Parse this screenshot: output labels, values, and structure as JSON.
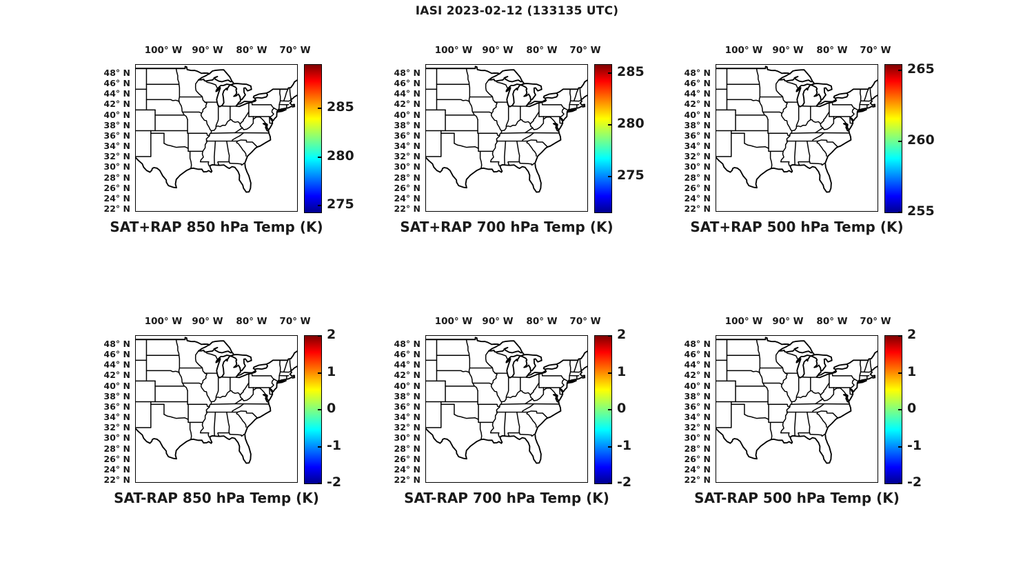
{
  "figure": {
    "title": "IASI 2023-02-12 (133135 UTC)",
    "background_color": "#ffffff",
    "text_color": "#1a1a1a"
  },
  "axes": {
    "lon_tick_labels": [
      "100° W",
      "90° W",
      "80° W",
      "70° W"
    ],
    "lon_tick_values": [
      -100,
      -90,
      -80,
      -70
    ],
    "lat_tick_labels": [
      "48° N",
      "46° N",
      "44° N",
      "42° N",
      "40° N",
      "38° N",
      "36° N",
      "34° N",
      "32° N",
      "30° N",
      "28° N",
      "26° N",
      "24° N",
      "22° N"
    ],
    "lat_tick_values": [
      48,
      46,
      44,
      42,
      40,
      38,
      36,
      34,
      32,
      30,
      28,
      26,
      24,
      22
    ],
    "lon_range_deg_east": [
      -106.5,
      -69.4
    ],
    "lat_range_deg_north": [
      21.5,
      49.7
    ]
  },
  "colormap": {
    "name": "jet",
    "low_color": "#000090",
    "high_color": "#7f0000"
  },
  "panels": [
    {
      "id": "sat-plus-rap-850",
      "row": 0,
      "col": 0,
      "caption": "SAT+RAP 850 hPa Temp (K)",
      "colorbar": {
        "min": 274.3,
        "max": 289.5,
        "tick_values": [
          285,
          280,
          275
        ],
        "tick_labels": [
          "285",
          "280",
          "275"
        ]
      }
    },
    {
      "id": "sat-plus-rap-700",
      "row": 0,
      "col": 1,
      "caption": "SAT+RAP 700 hPa Temp (K)",
      "colorbar": {
        "min": 271.5,
        "max": 285.8,
        "tick_values": [
          285,
          280,
          275
        ],
        "tick_labels": [
          "285",
          "280",
          "275"
        ]
      }
    },
    {
      "id": "sat-plus-rap-500",
      "row": 0,
      "col": 2,
      "caption": "SAT+RAP 500 hPa Temp (K)",
      "colorbar": {
        "min": 255.0,
        "max": 265.4,
        "tick_values": [
          265,
          260,
          255
        ],
        "tick_labels": [
          "265",
          "260",
          "255"
        ]
      }
    },
    {
      "id": "sat-minus-rap-850",
      "row": 1,
      "col": 0,
      "caption": "SAT-RAP 850 hPa Temp (K)",
      "colorbar": {
        "min": -2,
        "max": 2,
        "tick_values": [
          2,
          1,
          0,
          -1,
          -2
        ],
        "tick_labels": [
          "2",
          "1",
          "0",
          "-1",
          "-2"
        ]
      }
    },
    {
      "id": "sat-minus-rap-700",
      "row": 1,
      "col": 1,
      "caption": "SAT-RAP 700 hPa Temp (K)",
      "colorbar": {
        "min": -2,
        "max": 2,
        "tick_values": [
          2,
          1,
          0,
          -1,
          -2
        ],
        "tick_labels": [
          "2",
          "1",
          "0",
          "-1",
          "-2"
        ]
      }
    },
    {
      "id": "sat-minus-rap-500",
      "row": 1,
      "col": 2,
      "caption": "SAT-RAP 500 hPa Temp (K)",
      "colorbar": {
        "min": -2,
        "max": 2,
        "tick_values": [
          2,
          1,
          0,
          -1,
          -2
        ],
        "tick_labels": [
          "2",
          "1",
          "0",
          "-1",
          "-2"
        ]
      }
    }
  ],
  "chart_data": [
    {
      "type": "heatmap",
      "title": "SAT+RAP 850 hPa Temp (K)",
      "x_ticks": [
        "100° W",
        "90° W",
        "80° W",
        "70° W"
      ],
      "y_ticks": [
        "48° N",
        "46° N",
        "44° N",
        "42° N",
        "40° N",
        "38° N",
        "36° N",
        "34° N",
        "32° N",
        "30° N",
        "28° N",
        "26° N",
        "24° N",
        "22° N"
      ],
      "lon_extent_deg": [
        -106.5,
        -69.4
      ],
      "lat_extent_deg": [
        21.5,
        49.7
      ],
      "colormap": "jet",
      "colorbar_ticks": [
        275,
        280,
        285
      ],
      "colorbar_range_approx": [
        274.3,
        289.5
      ],
      "plotted_values": "none visible - blank basemap of US state outlines, Great Lakes, Atlantic and Gulf coasts",
      "grid": false,
      "legend": "colorbar right"
    },
    {
      "type": "heatmap",
      "title": "SAT+RAP 700 hPa Temp (K)",
      "x_ticks": [
        "100° W",
        "90° W",
        "80° W",
        "70° W"
      ],
      "y_ticks": [
        "48° N",
        "46° N",
        "44° N",
        "42° N",
        "40° N",
        "38° N",
        "36° N",
        "34° N",
        "32° N",
        "30° N",
        "28° N",
        "26° N",
        "24° N",
        "22° N"
      ],
      "lon_extent_deg": [
        -106.5,
        -69.4
      ],
      "lat_extent_deg": [
        21.5,
        49.7
      ],
      "colormap": "jet",
      "colorbar_ticks": [
        275,
        280,
        285
      ],
      "colorbar_range_approx": [
        271.5,
        285.8
      ],
      "plotted_values": "none visible - blank basemap of US state outlines, Great Lakes, Atlantic and Gulf coasts",
      "grid": false,
      "legend": "colorbar right"
    },
    {
      "type": "heatmap",
      "title": "SAT+RAP 500 hPa Temp (K)",
      "x_ticks": [
        "100° W",
        "90° W",
        "80° W",
        "70° W"
      ],
      "y_ticks": [
        "48° N",
        "46° N",
        "44° N",
        "42° N",
        "40° N",
        "38° N",
        "36° N",
        "34° N",
        "32° N",
        "30° N",
        "28° N",
        "26° N",
        "24° N",
        "22° N"
      ],
      "lon_extent_deg": [
        -106.5,
        -69.4
      ],
      "lat_extent_deg": [
        21.5,
        49.7
      ],
      "colormap": "jet",
      "colorbar_ticks": [
        255,
        260,
        265
      ],
      "colorbar_range_approx": [
        255.0,
        265.4
      ],
      "plotted_values": "none visible - blank basemap of US state outlines, Great Lakes, Atlantic and Gulf coasts",
      "grid": false,
      "legend": "colorbar right"
    },
    {
      "type": "heatmap",
      "title": "SAT-RAP 850 hPa Temp (K)",
      "x_ticks": [
        "100° W",
        "90° W",
        "80° W",
        "70° W"
      ],
      "y_ticks": [
        "48° N",
        "46° N",
        "44° N",
        "42° N",
        "40° N",
        "38° N",
        "36° N",
        "34° N",
        "32° N",
        "30° N",
        "28° N",
        "26° N",
        "24° N",
        "22° N"
      ],
      "lon_extent_deg": [
        -106.5,
        -69.4
      ],
      "lat_extent_deg": [
        21.5,
        49.7
      ],
      "colormap": "jet",
      "colorbar_ticks": [
        -2,
        -1,
        0,
        1,
        2
      ],
      "colorbar_range_approx": [
        -2,
        2
      ],
      "plotted_values": "none visible - blank basemap of US state outlines, Great Lakes, Atlantic and Gulf coasts",
      "grid": false,
      "legend": "colorbar right"
    },
    {
      "type": "heatmap",
      "title": "SAT-RAP 700 hPa Temp (K)",
      "x_ticks": [
        "100° W",
        "90° W",
        "80° W",
        "70° W"
      ],
      "y_ticks": [
        "48° N",
        "46° N",
        "44° N",
        "42° N",
        "40° N",
        "38° N",
        "36° N",
        "34° N",
        "32° N",
        "30° N",
        "28° N",
        "26° N",
        "24° N",
        "22° N"
      ],
      "lon_extent_deg": [
        -106.5,
        -69.4
      ],
      "lat_extent_deg": [
        21.5,
        49.7
      ],
      "colormap": "jet",
      "colorbar_ticks": [
        -2,
        -1,
        0,
        1,
        2
      ],
      "colorbar_range_approx": [
        -2,
        2
      ],
      "plotted_values": "none visible - blank basemap of US state outlines, Great Lakes, Atlantic and Gulf coasts",
      "grid": false,
      "legend": "colorbar right"
    },
    {
      "type": "heatmap",
      "title": "SAT-RAP 500 hPa Temp (K)",
      "x_ticks": [
        "100° W",
        "90° W",
        "80° W",
        "70° W"
      ],
      "y_ticks": [
        "48° N",
        "46° N",
        "44° N",
        "42° N",
        "40° N",
        "38° N",
        "36° N",
        "34° N",
        "32° N",
        "30° N",
        "28° N",
        "26° N",
        "24° N",
        "22° N"
      ],
      "lon_extent_deg": [
        -106.5,
        -69.4
      ],
      "lat_extent_deg": [
        21.5,
        49.7
      ],
      "colormap": "jet",
      "colorbar_ticks": [
        -2,
        -1,
        0,
        1,
        2
      ],
      "colorbar_range_approx": [
        -2,
        2
      ],
      "plotted_values": "none visible - blank basemap of US state outlines, Great Lakes, Atlantic and Gulf coasts",
      "grid": false,
      "legend": "colorbar right"
    }
  ]
}
